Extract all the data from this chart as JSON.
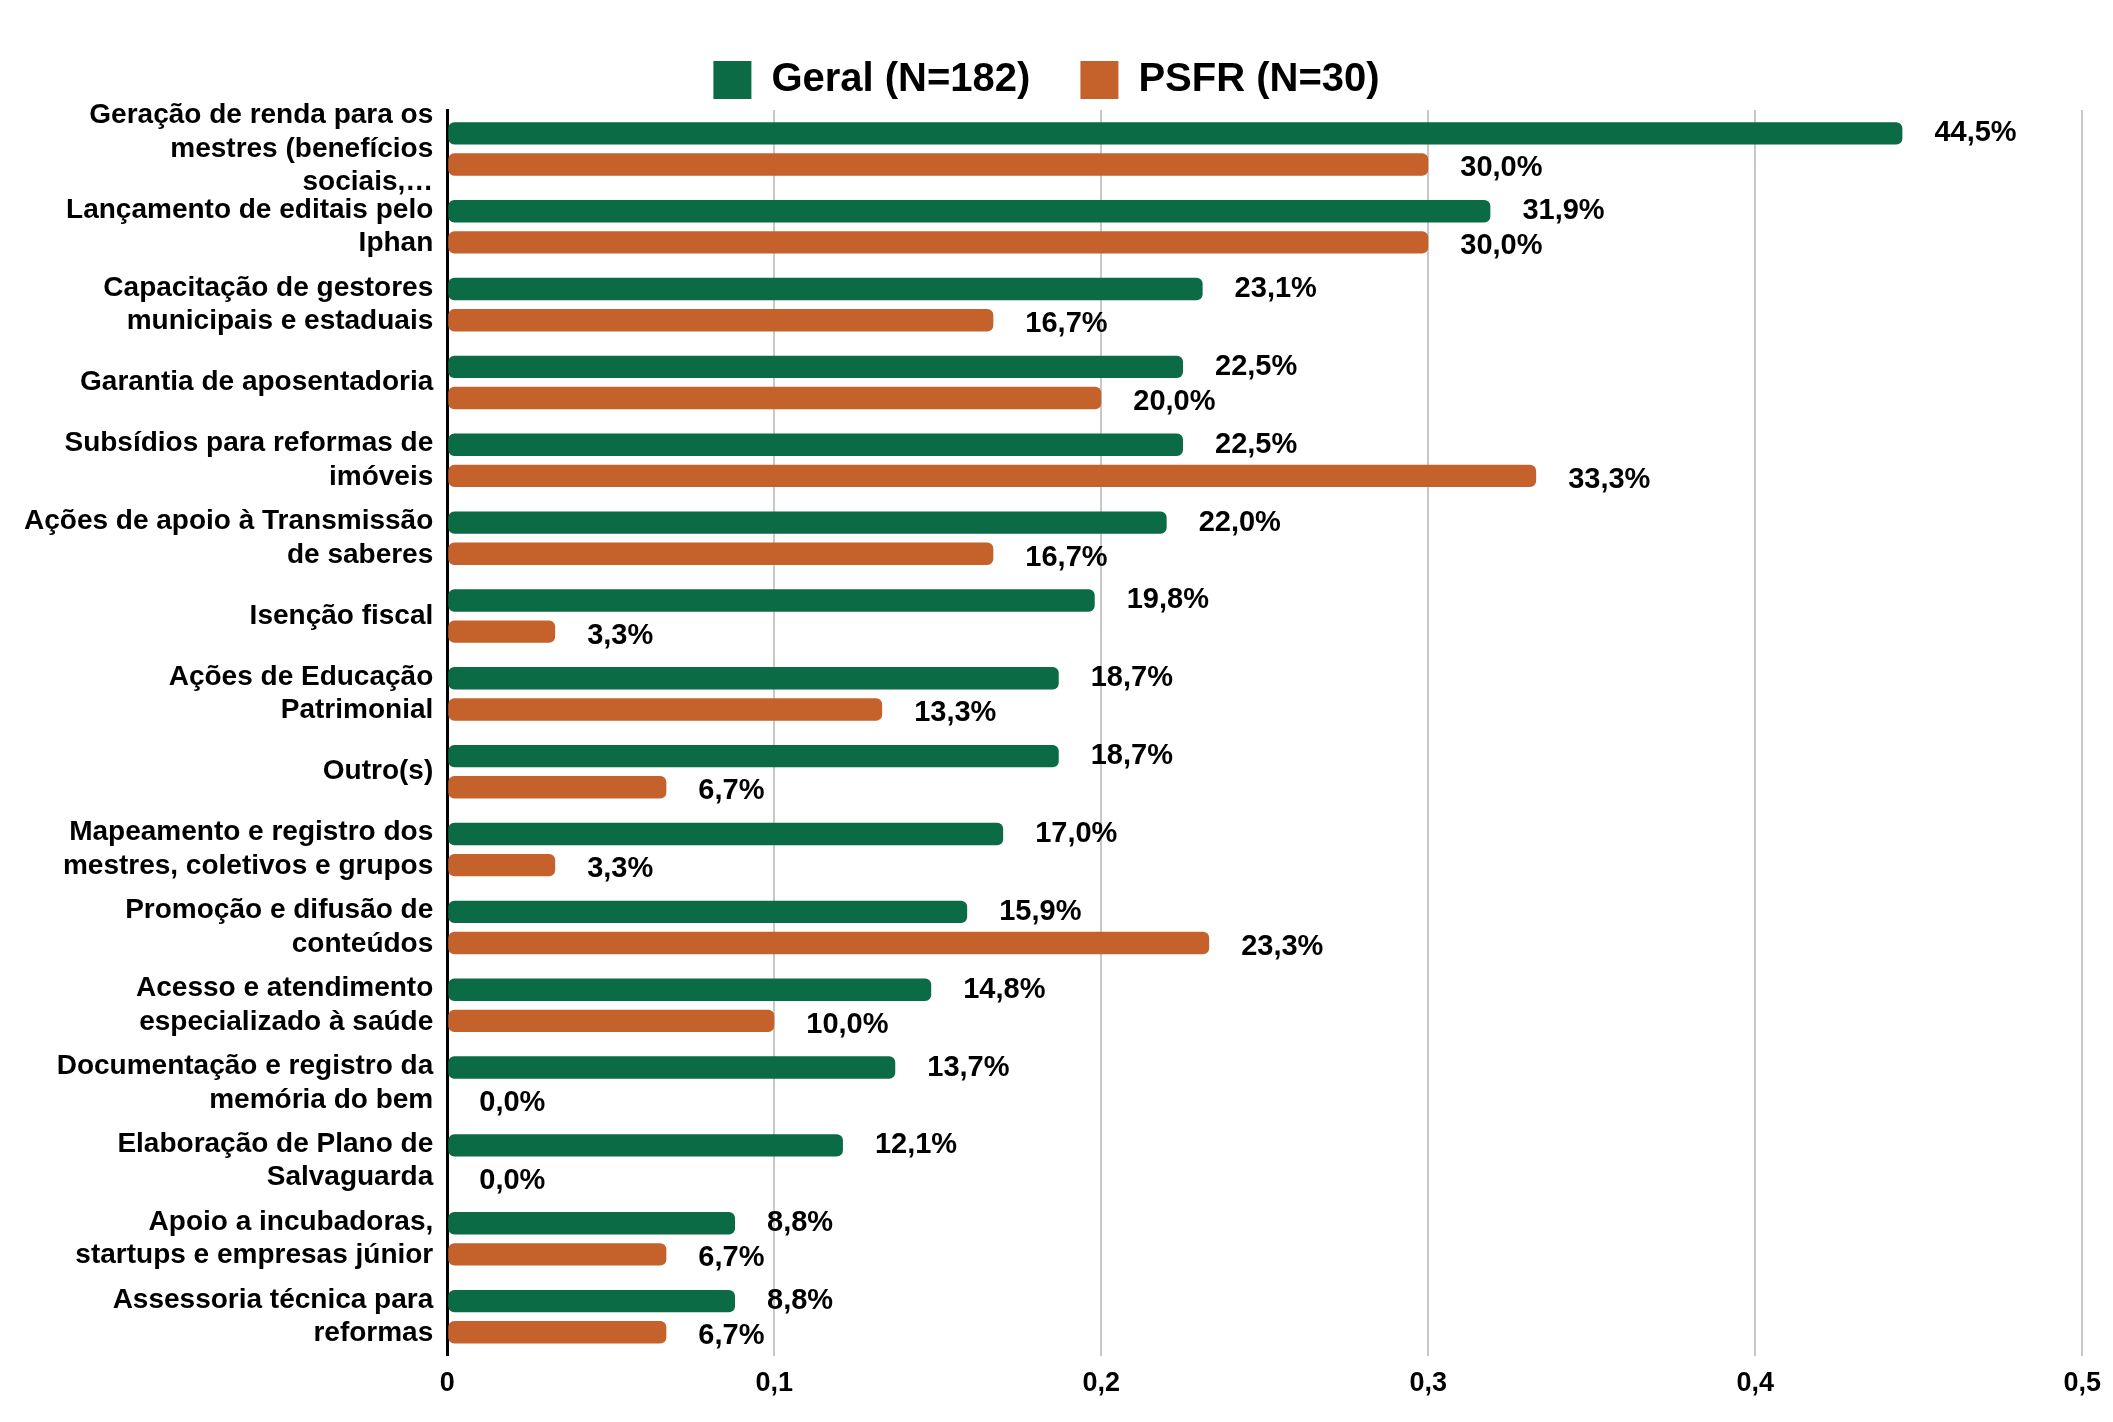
{
  "chart_data": {
    "type": "bar",
    "orientation": "horizontal",
    "categories": [
      "Geração de renda para os mestres (benefícios sociais,…",
      "Lançamento de editais pelo Iphan",
      "Capacitação de gestores municipais e estaduais",
      "Garantia de aposentadoria",
      "Subsídios para reformas de imóveis",
      "Ações de apoio à Transmissão de saberes",
      "Isenção fiscal",
      "Ações de Educação Patrimonial",
      "Outro(s)",
      "Mapeamento e registro dos mestres, coletivos e grupos",
      "Promoção e difusão de conteúdos",
      "Acesso e atendimento especializado à saúde",
      "Documentação e registro da memória do bem",
      "Elaboração de Plano de Salvaguarda",
      "Apoio a incubadoras, startups e empresas júnior",
      "Assessoria técnica para reformas"
    ],
    "series": [
      {
        "name": "Geral (N=182)",
        "color": "#0b6b45",
        "values": [
          0.445,
          0.319,
          0.231,
          0.225,
          0.225,
          0.22,
          0.198,
          0.187,
          0.187,
          0.17,
          0.159,
          0.148,
          0.137,
          0.121,
          0.088,
          0.088
        ],
        "value_labels": [
          "44,5%",
          "31,9%",
          "23,1%",
          "22,5%",
          "22,5%",
          "22,0%",
          "19,8%",
          "18,7%",
          "18,7%",
          "17,0%",
          "15,9%",
          "14,8%",
          "13,7%",
          "12,1%",
          "8,8%",
          "8,8%"
        ]
      },
      {
        "name": "PSFR (N=30)",
        "color": "#c5622b",
        "values": [
          0.3,
          0.3,
          0.167,
          0.2,
          0.333,
          0.167,
          0.033,
          0.133,
          0.067,
          0.033,
          0.233,
          0.1,
          0,
          0,
          0.067,
          0.067
        ],
        "value_labels": [
          "30,0%",
          "30,0%",
          "16,7%",
          "20,0%",
          "33,3%",
          "16,7%",
          "3,3%",
          "13,3%",
          "6,7%",
          "3,3%",
          "23,3%",
          "10,0%",
          "0,0%",
          "0,0%",
          "6,7%",
          "6,7%"
        ]
      }
    ],
    "xlim": [
      0,
      0.5
    ],
    "xticks": [
      {
        "value": 0,
        "label": "0"
      },
      {
        "value": 0.1,
        "label": "0,1"
      },
      {
        "value": 0.2,
        "label": "0,2"
      },
      {
        "value": 0.3,
        "label": "0,3"
      },
      {
        "value": 0.4,
        "label": "0,4"
      },
      {
        "value": 0.5,
        "label": "0,5"
      }
    ],
    "grid": "x",
    "legend": "top"
  }
}
